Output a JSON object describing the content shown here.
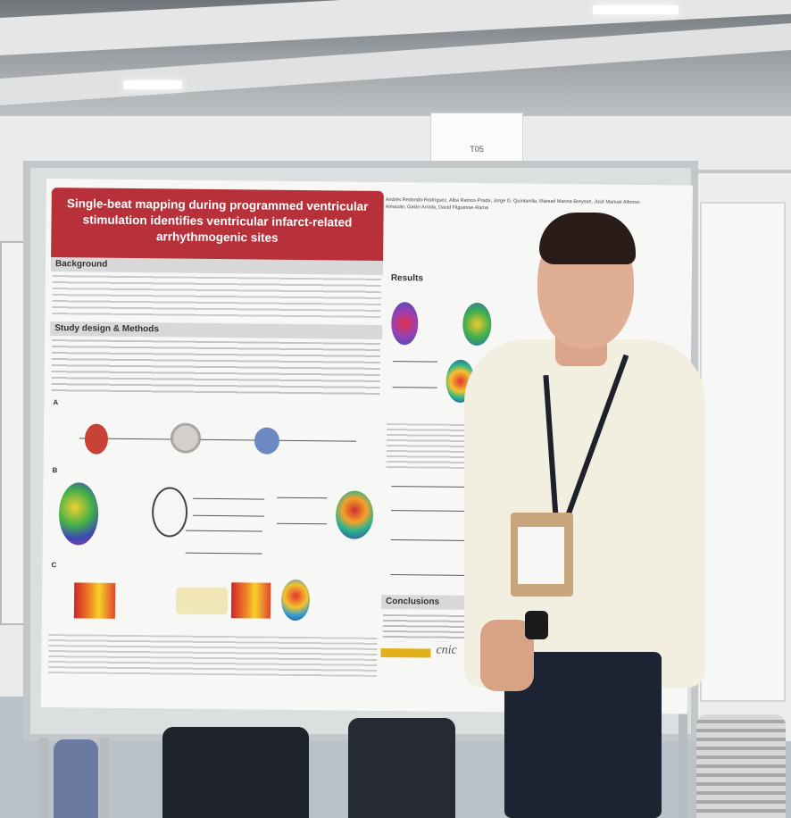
{
  "sign": {
    "text": "T05"
  },
  "poster": {
    "title": "Single-beat mapping during programmed ventricular stimulation identifies ventricular infarct-related arrhythmogenic sites",
    "authors": "Andrés Redondo-Rodríguez, Alba Ramos-Prada, Jorge G. Quintanilla, Manuel Marina-Breysse, José Manuel Alfonso-Almazán, Galán Arriola, David Filgueiras-Rama",
    "sections": {
      "background": "Background",
      "study_design": "Study design & Methods",
      "results": "Results",
      "conclusions": "Conclusions"
    },
    "figure_labels": [
      "A",
      "B",
      "C"
    ],
    "logo": "cnic"
  },
  "colors": {
    "title_banner": "#b8313a",
    "poster_bg": "#f7f7f6",
    "shirt": "#f3efe0",
    "trousers": "#1c2434"
  }
}
